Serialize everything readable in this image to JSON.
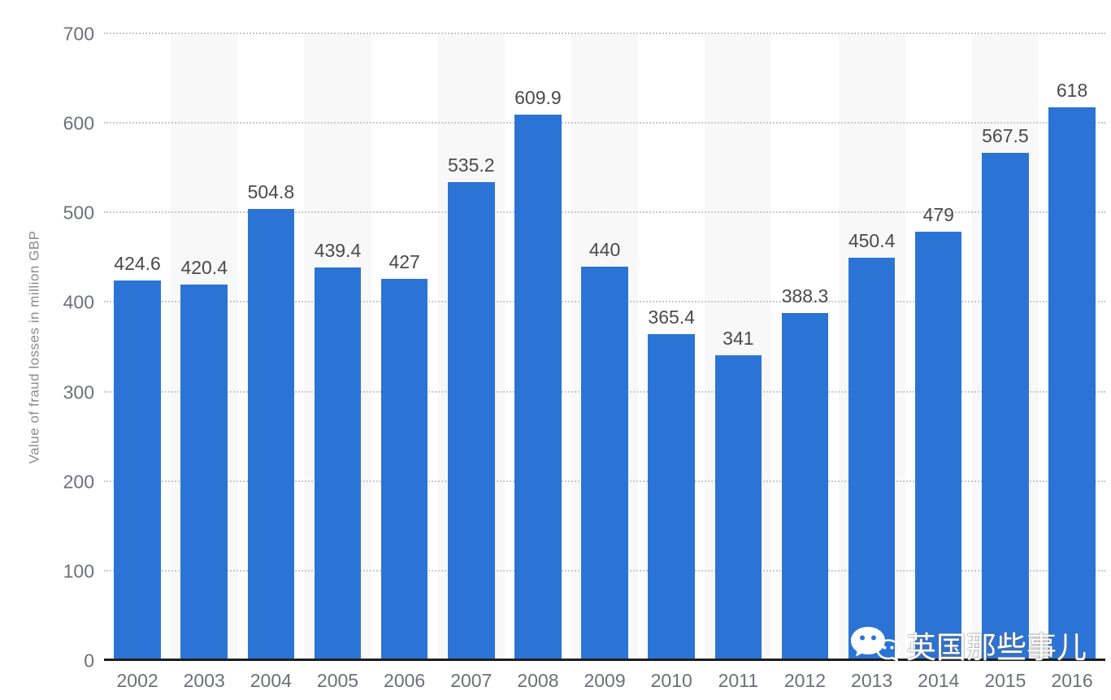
{
  "chart_data": {
    "type": "bar",
    "title": "",
    "xlabel": "",
    "ylabel": "Value of fraud losses in million GBP",
    "categories": [
      "2002",
      "2003",
      "2004",
      "2005",
      "2006",
      "2007",
      "2008",
      "2009",
      "2010",
      "2011",
      "2012",
      "2013",
      "2014",
      "2015",
      "2016"
    ],
    "values": [
      424.6,
      420.4,
      504.8,
      439.4,
      427,
      535.2,
      609.9,
      440,
      365.4,
      341,
      388.3,
      450.4,
      479,
      567.5,
      618
    ],
    "ylim": [
      0,
      700
    ],
    "yticks": [
      0,
      100,
      200,
      300,
      400,
      500,
      600,
      700
    ],
    "grid": "horizontal-dotted",
    "legend": null,
    "alternating_column_shading": true,
    "colors": {
      "bar": "#2b74d6",
      "stripe": "#f8f8f8",
      "gridline": "#c9c9c9",
      "axis_line": "#1e1e1e",
      "tick_label": "#6d7076",
      "value_label": "#4a4a4a",
      "axis_title": "#8b8b8b"
    }
  },
  "watermark": {
    "text": "英国那些事儿",
    "icon": "wechat-icon"
  }
}
